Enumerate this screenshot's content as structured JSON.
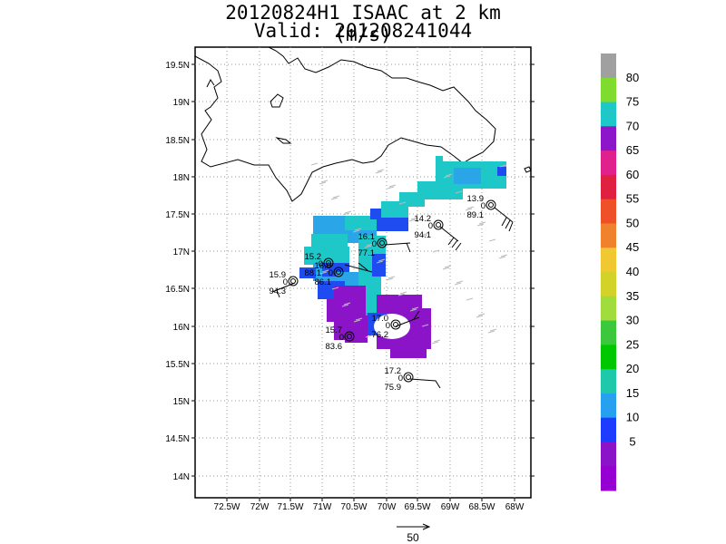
{
  "title": "20120824H1 ISAAC at 2 km (m/s)",
  "valid": "Valid: 201208241044",
  "map": {
    "lat_labels": [
      "19.5N",
      "19N",
      "18.5N",
      "18N",
      "17.5N",
      "17N",
      "16.5N",
      "16N",
      "15.5N",
      "15N",
      "14.5N",
      "14N"
    ],
    "lon_labels": [
      "72.5W",
      "72W",
      "71.5W",
      "71W",
      "70.5W",
      "70W",
      "69.5W",
      "69W",
      "68.5W",
      "68W"
    ]
  },
  "colorbar": {
    "labels": [
      "80",
      "75",
      "70",
      "65",
      "60",
      "55",
      "50",
      "45",
      "40",
      "35",
      "30",
      "25",
      "20",
      "15",
      "10",
      "5"
    ],
    "colors": [
      "#a0a0a0",
      "#7fdc2e",
      "#1fc8c8",
      "#8c16c8",
      "#e0208c",
      "#e02040",
      "#f05028",
      "#f0822e",
      "#f0c832",
      "#d2d228",
      "#a0dc3c",
      "#3cc83c",
      "#00c800",
      "#1ec8aa",
      "#28a0f0",
      "#1e3cff",
      "#8c14c8",
      "#9600d2"
    ]
  },
  "scale_label": "50",
  "stations": [
    {
      "top": "13.9",
      "mid": "0",
      "bot": "89.1"
    },
    {
      "top": "14.2",
      "mid": "0",
      "bot": "94.1"
    },
    {
      "top": "16.1",
      "mid": "0",
      "bot": "77.1"
    },
    {
      "top": "15.2",
      "mid": "0",
      "bot": "88.1"
    },
    {
      "top": "16.0",
      "mid": "0",
      "bot": "86.1"
    },
    {
      "top": "15.9",
      "mid": "0",
      "bot": "94.3"
    },
    {
      "top": "17.0",
      "mid": "0",
      "bot": "76.2"
    },
    {
      "top": "15.7",
      "mid": "0",
      "bot": "83.6"
    },
    {
      "top": "17.2",
      "mid": "0",
      "bot": "75.9"
    }
  ]
}
